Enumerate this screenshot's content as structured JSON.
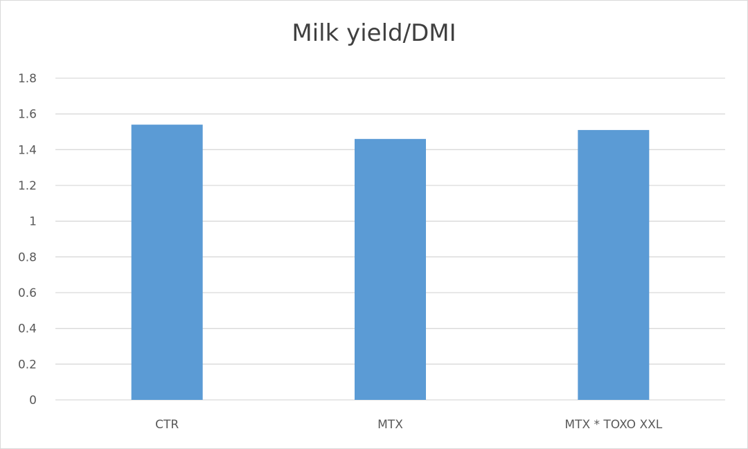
{
  "chart_data": {
    "type": "bar",
    "title": "Milk yield/DMI",
    "categories": [
      "CTR",
      "MTX",
      "MTX * TOXO XXL"
    ],
    "values": [
      1.54,
      1.46,
      1.51
    ],
    "ylim": [
      0,
      1.8
    ],
    "yticks": [
      "0",
      "0.2",
      "0.4",
      "0.6",
      "0.8",
      "1",
      "1.2",
      "1.4",
      "1.6",
      "1.8"
    ],
    "grid": true,
    "legend": "none",
    "bar_color": "#5b9bd5",
    "grid_color": "#d9d9d9"
  }
}
